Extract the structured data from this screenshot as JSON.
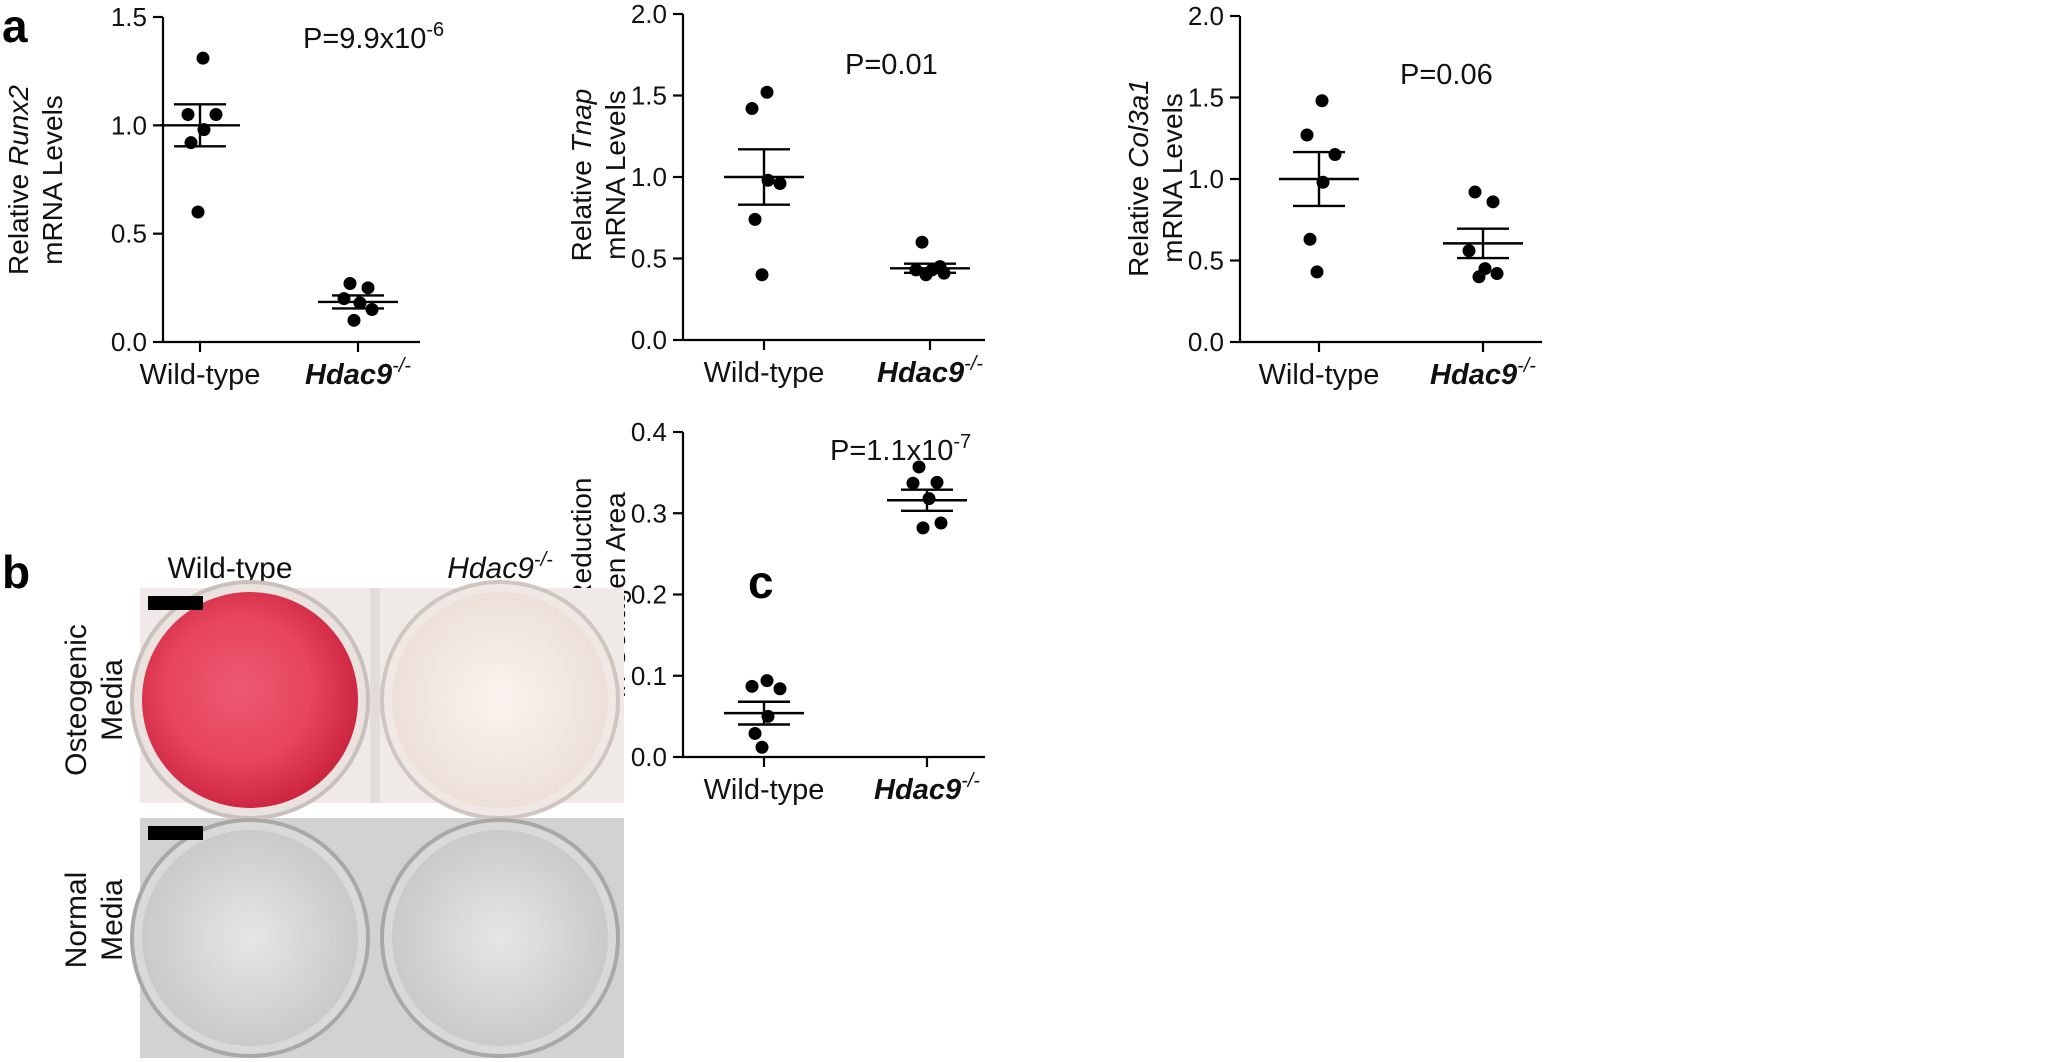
{
  "panel_letters": {
    "a": "a",
    "b": "b",
    "c": "c"
  },
  "panel_b": {
    "col_wild": "Wild-type",
    "col_hdac_base": "Hdac9",
    "col_hdac_sup": "-/-",
    "row_osteo_1": "Osteogenic",
    "row_osteo_2": "Media",
    "row_normal_1": "Normal",
    "row_normal_2": "Media",
    "colors": {
      "stain": "#e8455e",
      "stain_dark": "#c8203c",
      "unstained": "#f4ebe6",
      "plate_gray": "#cfcfcf",
      "well_gray": "#d8d8d8",
      "scale_bar": "#000000"
    }
  },
  "chart_data": [
    {
      "id": "runx2",
      "type": "scatter",
      "title": "",
      "ylabel_line1_prefix": "Relative ",
      "ylabel_line1_gene": "Runx2",
      "ylabel_line2": "mRNA Levels",
      "categories": [
        {
          "base": "Wild-type",
          "sup": "",
          "italic": false
        },
        {
          "base": "Hdac9",
          "sup": "-/-",
          "italic": true
        }
      ],
      "ylim": [
        0,
        1.5
      ],
      "yticks": [
        0.0,
        0.5,
        1.0,
        1.5
      ],
      "tick_labels": [
        "0.0",
        "0.5",
        "1.0",
        "1.5"
      ],
      "pvalue_base": "P=9.9x10",
      "pvalue_exp": "-6",
      "series": [
        {
          "name": "Wild-type",
          "mean": 1.0,
          "sem": 0.097,
          "points": [
            1.31,
            1.05,
            1.05,
            0.98,
            0.92,
            0.6
          ]
        },
        {
          "name": "Hdac9-/-",
          "mean": 0.185,
          "sem": 0.03,
          "points": [
            0.27,
            0.25,
            0.2,
            0.18,
            0.15,
            0.1
          ]
        }
      ]
    },
    {
      "id": "tnap",
      "type": "scatter",
      "title": "",
      "ylabel_line1_prefix": "Relative ",
      "ylabel_line1_gene": "Tnap",
      "ylabel_line2": "mRNA Levels",
      "categories": [
        {
          "base": "Wild-type",
          "sup": "",
          "italic": false
        },
        {
          "base": "Hdac9",
          "sup": "-/-",
          "italic": true
        }
      ],
      "ylim": [
        0,
        2.0
      ],
      "yticks": [
        0.0,
        0.5,
        1.0,
        1.5,
        2.0
      ],
      "tick_labels": [
        "0.0",
        "0.5",
        "1.0",
        "1.5",
        "2.0"
      ],
      "pvalue_base": "P=0.01",
      "pvalue_exp": "",
      "series": [
        {
          "name": "Wild-type",
          "mean": 1.0,
          "sem": 0.17,
          "points": [
            1.52,
            1.42,
            0.96,
            0.98,
            0.74,
            0.4
          ]
        },
        {
          "name": "Hdac9-/-",
          "mean": 0.44,
          "sem": 0.028,
          "points": [
            0.6,
            0.45,
            0.43,
            0.43,
            0.41,
            0.4
          ]
        }
      ]
    },
    {
      "id": "col3a1",
      "type": "scatter",
      "title": "",
      "ylabel_line1_prefix": "Relative ",
      "ylabel_line1_gene": "Col3a1",
      "ylabel_line2": "mRNA Levels",
      "categories": [
        {
          "base": "Wild-type",
          "sup": "",
          "italic": false
        },
        {
          "base": "Hdac9",
          "sup": "-/-",
          "italic": true
        }
      ],
      "ylim": [
        0,
        2.0
      ],
      "yticks": [
        0.0,
        0.5,
        1.0,
        1.5,
        2.0
      ],
      "tick_labels": [
        "0.0",
        "0.5",
        "1.0",
        "1.5",
        "2.0"
      ],
      "pvalue_base": "P=0.06",
      "pvalue_exp": "",
      "series": [
        {
          "name": "Wild-type",
          "mean": 1.0,
          "sem": 0.165,
          "points": [
            1.48,
            1.27,
            1.15,
            0.98,
            0.63,
            0.43
          ]
        },
        {
          "name": "Hdac9-/-",
          "mean": 0.605,
          "sem": 0.09,
          "points": [
            0.92,
            0.86,
            0.56,
            0.45,
            0.42,
            0.4
          ]
        }
      ]
    },
    {
      "id": "collagen",
      "type": "scatter",
      "title": "",
      "ylabel_line1_prefix": "Relative Reduction",
      "ylabel_line1_gene": "",
      "ylabel_line2": "in Collagen Area",
      "categories": [
        {
          "base": "Wild-type",
          "sup": "",
          "italic": false
        },
        {
          "base": "Hdac9",
          "sup": "-/-",
          "italic": true
        }
      ],
      "ylim": [
        0,
        0.4
      ],
      "yticks": [
        0.0,
        0.1,
        0.2,
        0.3,
        0.4
      ],
      "tick_labels": [
        "0.0",
        "0.1",
        "0.2",
        "0.3",
        "0.4"
      ],
      "pvalue_base": "P=1.1x10",
      "pvalue_exp": "-7",
      "series": [
        {
          "name": "Wild-type",
          "mean": 0.054,
          "sem": 0.014,
          "points": [
            0.094,
            0.087,
            0.084,
            0.05,
            0.029,
            0.012
          ]
        },
        {
          "name": "Hdac9-/-",
          "mean": 0.316,
          "sem": 0.013,
          "points": [
            0.357,
            0.338,
            0.337,
            0.318,
            0.288,
            0.282
          ]
        }
      ]
    }
  ]
}
